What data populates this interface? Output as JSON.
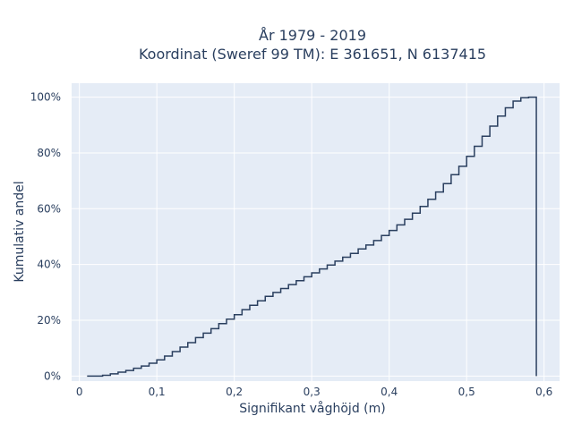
{
  "chart_data": {
    "type": "line",
    "line_shape": "step",
    "title_line1": "År 1979 - 2019",
    "title_line2": "Koordinat (Sweref 99 TM): E 361651, N 6137415",
    "xlabel": "Signifikant våghöjd (m)",
    "ylabel": "Kumulativ andel",
    "xlim": [
      -0.01,
      0.62
    ],
    "ylim": [
      -0.018,
      1.05
    ],
    "x_ticks": [
      0,
      0.1,
      0.2,
      0.3,
      0.4,
      0.5,
      0.6
    ],
    "x_tick_labels": [
      "0",
      "0,1",
      "0,2",
      "0,3",
      "0,4",
      "0,5",
      "0,6"
    ],
    "y_ticks": [
      0,
      0.2,
      0.4,
      0.6,
      0.8,
      1.0
    ],
    "y_tick_labels": [
      "0%",
      "20%",
      "40%",
      "60%",
      "80%",
      "100%"
    ],
    "grid": true,
    "legend": "none",
    "colors": {
      "plot_bg": "#e5ecf6",
      "grid": "#ffffff",
      "line": "#2a3f5f",
      "text": "#2a3f5f"
    },
    "series": [
      {
        "x": [
          0.01,
          0.02,
          0.03,
          0.04,
          0.05,
          0.06,
          0.07,
          0.08,
          0.09,
          0.1,
          0.11,
          0.12,
          0.13,
          0.14,
          0.15,
          0.16,
          0.17,
          0.18,
          0.19,
          0.2,
          0.21,
          0.22,
          0.23,
          0.24,
          0.25,
          0.26,
          0.27,
          0.28,
          0.29,
          0.3,
          0.31,
          0.32,
          0.33,
          0.34,
          0.35,
          0.36,
          0.37,
          0.38,
          0.39,
          0.4,
          0.41,
          0.42,
          0.43,
          0.44,
          0.45,
          0.46,
          0.47,
          0.48,
          0.49,
          0.5,
          0.51,
          0.52,
          0.53,
          0.54,
          0.55,
          0.56,
          0.57,
          0.58,
          0.59
        ],
        "y": [
          0.0,
          0.0,
          0.003,
          0.008,
          0.014,
          0.02,
          0.028,
          0.036,
          0.046,
          0.058,
          0.072,
          0.088,
          0.104,
          0.12,
          0.138,
          0.154,
          0.17,
          0.188,
          0.204,
          0.22,
          0.238,
          0.254,
          0.27,
          0.286,
          0.3,
          0.314,
          0.328,
          0.342,
          0.356,
          0.37,
          0.384,
          0.398,
          0.412,
          0.426,
          0.44,
          0.456,
          0.47,
          0.486,
          0.504,
          0.522,
          0.542,
          0.562,
          0.584,
          0.608,
          0.634,
          0.66,
          0.69,
          0.722,
          0.752,
          0.788,
          0.824,
          0.86,
          0.896,
          0.932,
          0.962,
          0.986,
          0.998,
          1.0,
          0.0
        ]
      }
    ]
  }
}
